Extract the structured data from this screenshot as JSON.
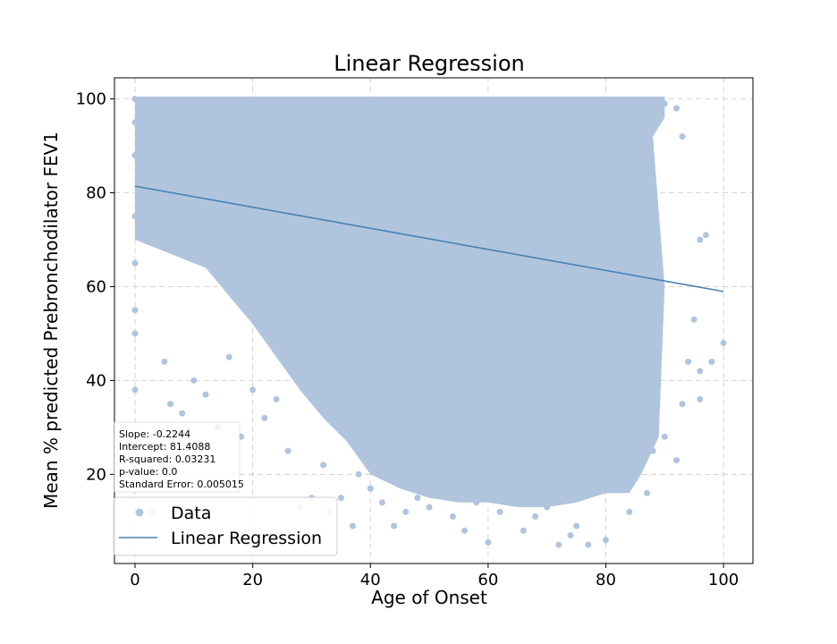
{
  "chart_data": {
    "type": "scatter",
    "title": "Linear Regression",
    "xlabel": "Age of Onset",
    "ylabel": "Mean % predicted Prebronchodilator FEV1",
    "xlim": [
      -3.5,
      105
    ],
    "ylim": [
      1,
      104.5
    ],
    "xticks": [
      0,
      20,
      40,
      60,
      80,
      100
    ],
    "yticks": [
      20,
      40,
      60,
      80,
      100
    ],
    "grid": true,
    "legend_position": "lower-left",
    "colors": {
      "data": "#b0c4de",
      "line": "#4682b4"
    },
    "series": [
      {
        "name": "Data",
        "kind": "scatter",
        "description_points": [
          [
            0,
            100
          ],
          [
            0,
            95
          ],
          [
            0,
            88
          ],
          [
            0,
            75
          ],
          [
            0,
            65
          ],
          [
            0,
            55
          ],
          [
            0,
            50
          ],
          [
            0,
            38
          ],
          [
            0,
            21
          ],
          [
            3,
            12
          ],
          [
            5,
            44
          ],
          [
            6,
            35
          ],
          [
            8,
            33
          ],
          [
            10,
            40
          ],
          [
            12,
            37
          ],
          [
            14,
            30
          ],
          [
            16,
            45
          ],
          [
            18,
            28
          ],
          [
            20,
            38
          ],
          [
            22,
            32
          ],
          [
            24,
            36
          ],
          [
            26,
            25
          ],
          [
            28,
            13
          ],
          [
            30,
            15
          ],
          [
            32,
            22
          ],
          [
            33,
            12
          ],
          [
            35,
            15
          ],
          [
            37,
            9
          ],
          [
            38,
            20
          ],
          [
            40,
            17
          ],
          [
            42,
            14
          ],
          [
            44,
            9
          ],
          [
            46,
            12
          ],
          [
            48,
            15
          ],
          [
            50,
            13
          ],
          [
            52,
            17
          ],
          [
            54,
            11
          ],
          [
            56,
            8
          ],
          [
            58,
            14
          ],
          [
            60,
            5.5
          ],
          [
            62,
            12
          ],
          [
            64,
            15
          ],
          [
            66,
            8
          ],
          [
            68,
            11
          ],
          [
            70,
            13
          ],
          [
            72,
            5
          ],
          [
            74,
            7
          ],
          [
            75,
            9
          ],
          [
            77,
            5
          ],
          [
            80,
            6
          ],
          [
            82,
            19
          ],
          [
            84,
            12
          ],
          [
            85,
            22
          ],
          [
            87,
            16
          ],
          [
            88,
            25
          ],
          [
            90,
            28
          ],
          [
            92,
            23
          ],
          [
            93,
            35
          ],
          [
            94,
            44
          ],
          [
            95,
            53
          ],
          [
            96,
            36
          ],
          [
            96,
            42
          ],
          [
            96,
            70
          ],
          [
            97,
            71
          ],
          [
            98,
            44
          ],
          [
            100,
            48
          ],
          [
            92,
            98
          ],
          [
            93,
            92
          ],
          [
            90,
            99
          ],
          [
            88,
            95
          ]
        ]
      },
      {
        "name": "Linear Regression",
        "kind": "line",
        "x": [
          0,
          100
        ],
        "y": [
          81.4088,
          58.9688
        ]
      }
    ],
    "stats": {
      "slope": "Slope: -0.2244",
      "intercept": "Intercept: 81.4088",
      "r_squared": "R-squared: 0.03231",
      "p_value": "p-value: 0.0",
      "std_err": "Standard Error: 0.005015"
    },
    "legend": {
      "data_label": "Data",
      "line_label": "Linear Regression"
    }
  }
}
